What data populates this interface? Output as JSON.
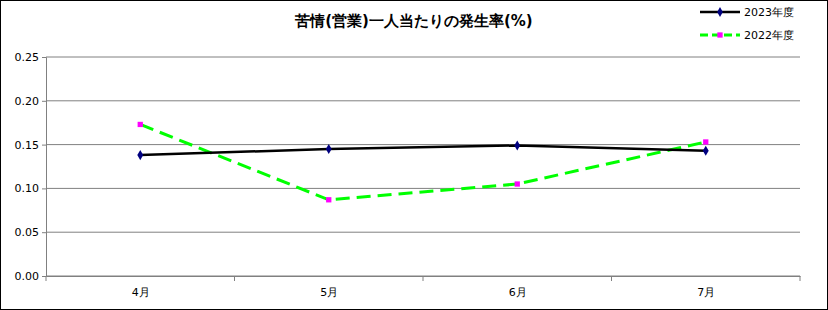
{
  "chart_data": {
    "type": "line",
    "title": "苦情(営業)一人当たりの発生率(%)",
    "categories": [
      "4月",
      "5月",
      "6月",
      "7月"
    ],
    "series": [
      {
        "name": "2023年度",
        "color": "#000000",
        "marker": "diamond",
        "line_style": "solid",
        "values": [
          0.138,
          0.145,
          0.149,
          0.143
        ]
      },
      {
        "name": "2022年度",
        "color": "#00ff00",
        "marker": "square",
        "line_style": "dashed",
        "values": [
          0.173,
          0.087,
          0.105,
          0.153
        ]
      }
    ],
    "ylim": [
      0,
      0.25
    ],
    "yticks": [
      {
        "value": 0,
        "label": "0.00"
      },
      {
        "value": 0.05,
        "label": "0.05"
      },
      {
        "value": 0.1,
        "label": "0.10"
      },
      {
        "value": 0.15,
        "label": "0.15"
      },
      {
        "value": 0.2,
        "label": "0.20"
      },
      {
        "value": 0.25,
        "label": "0.25"
      }
    ],
    "grid": true,
    "legend": "top-right"
  }
}
